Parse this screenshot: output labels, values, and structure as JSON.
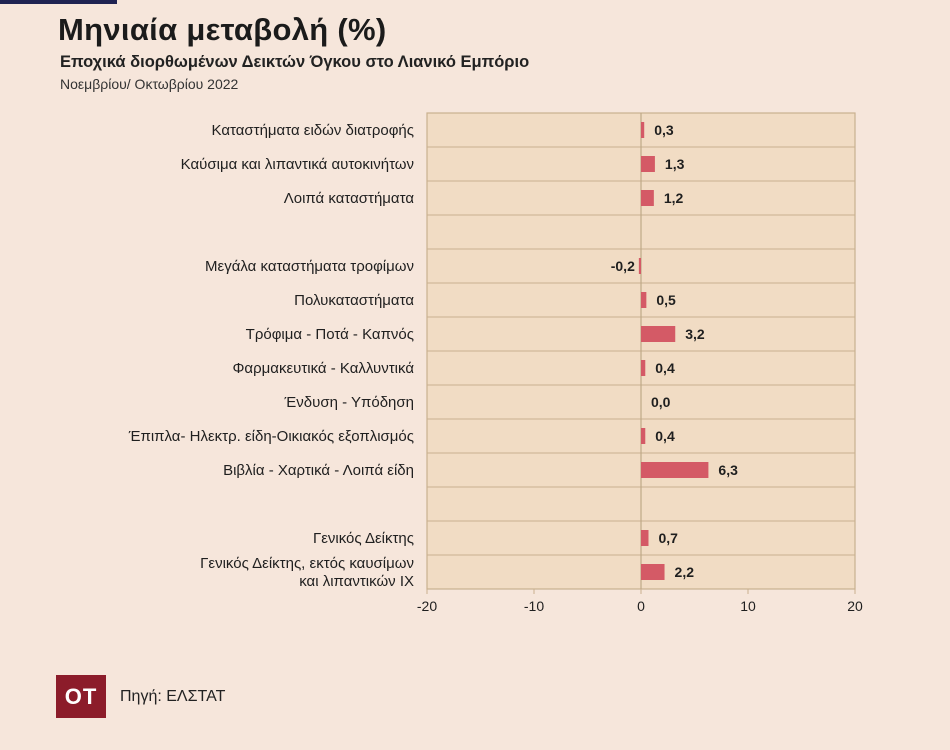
{
  "header": {
    "title": "Μηνιαία μεταβολή (%)",
    "subtitle": "Εποχικά διορθωμένων Δεικτών Όγκου στο Λιανικό Εμπόριο",
    "period": "Νοεμβρίου/ Οκτωβρίου 2022"
  },
  "footer": {
    "logo_text": "ΟΤ",
    "source": "Πηγή: ΕΛΣΤΑΤ"
  },
  "colors": {
    "background": "#f6e6db",
    "plot_area": "#f1dcc4",
    "bar": "#d45a66",
    "grid": "#c9b08f",
    "logo": "#8c1c2a"
  },
  "chart_data": {
    "type": "bar",
    "orientation": "horizontal",
    "categories": [
      "Καταστήματα ειδών διατροφής",
      "Καύσιμα και λιπαντικά αυτοκινήτων",
      "Λοιπά καταστήματα",
      "",
      "Μεγάλα καταστήματα τροφίμων",
      "Πολυκαταστήματα",
      "Τρόφιμα  -  Ποτά - Καπνός",
      "Φαρμακευτικά - Καλλυντικά",
      "Ένδυση - Υπόδηση",
      "Έπιπλα- Ηλεκτρ. είδη-Οικιακός εξοπλισμός",
      "Βιβλία - Χαρτικά - Λοιπά είδη",
      "",
      "Γενικός Δείκτης",
      [
        "Γενικός Δείκτης, εκτός καυσίμων",
        "και λιπαντικών ΙΧ"
      ]
    ],
    "values": [
      0.3,
      1.3,
      1.2,
      null,
      -0.2,
      0.5,
      3.2,
      0.4,
      0.0,
      0.4,
      6.3,
      null,
      0.7,
      2.2
    ],
    "data_labels": [
      "0,3",
      "1,3",
      "1,2",
      "",
      "-0,2",
      "0,5",
      "3,2",
      "0,4",
      "0,0",
      "0,4",
      "6,3",
      "",
      "0,7",
      "2,2"
    ],
    "xlim": [
      -20,
      20
    ],
    "xticks": [
      -20,
      -10,
      0,
      10,
      20
    ],
    "xtick_labels": [
      "-20",
      "-10",
      "0",
      "10",
      "20"
    ],
    "grid": "horizontal row separators",
    "legend": "none"
  }
}
